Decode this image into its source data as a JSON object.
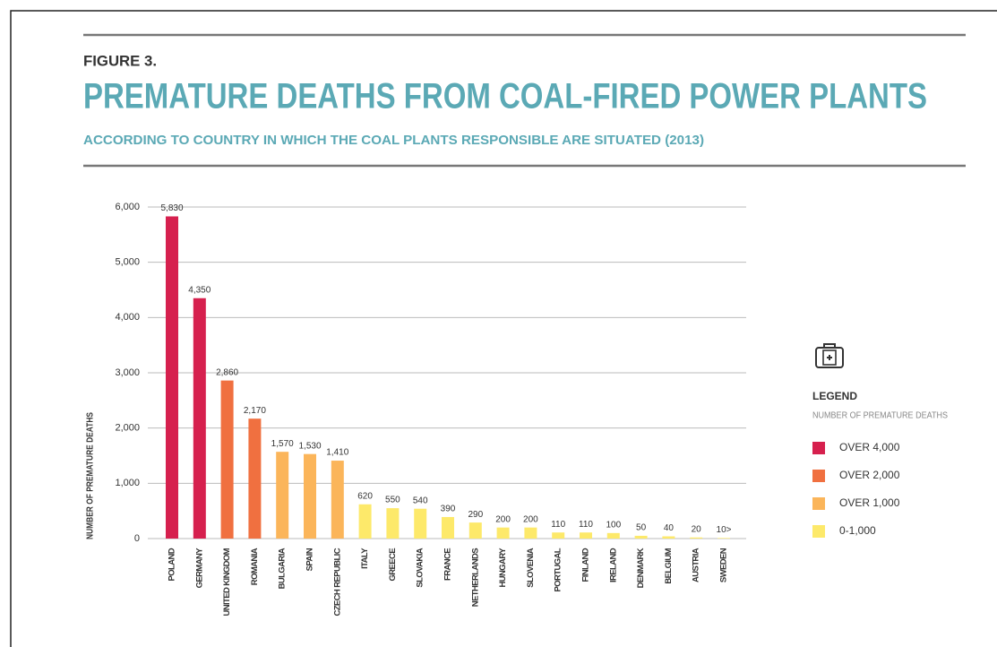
{
  "chart_data": {
    "type": "bar",
    "figure_label": "FIGURE 3.",
    "title": "PREMATURE DEATHS FROM COAL-FIRED POWER PLANTS",
    "subtitle": "ACCORDING TO COUNTRY IN WHICH THE COAL PLANTS RESPONSIBLE ARE SITUATED (2013)",
    "y_label": "NUMBER OF PREMATURE DEATHS",
    "categories": [
      "POLAND",
      "GERMANY",
      "UNITED KINGDOM",
      "ROMANIA",
      "BULGARIA",
      "SPAIN",
      "CZECH REPUBLIC",
      "ITALY",
      "GREECE",
      "SLOVAKIA",
      "FRANCE",
      "NETHERLANDS",
      "HUNGARY",
      "SLOVENIA",
      "PORTUGAL",
      "FINLAND",
      "IRELAND",
      "DENMARK",
      "BELGIUM",
      "AUSTRIA",
      "SWEDEN"
    ],
    "values": [
      5830,
      4350,
      2860,
      2170,
      1570,
      1530,
      1410,
      620,
      550,
      540,
      390,
      290,
      200,
      200,
      110,
      110,
      100,
      50,
      40,
      20,
      10
    ],
    "value_labels": [
      "5,830",
      "4,350",
      "2,860",
      "2,170",
      "1,570",
      "1,530",
      "1,410",
      "620",
      "550",
      "540",
      "390",
      "290",
      "200",
      "200",
      "110",
      "110",
      "100",
      "50",
      "40",
      "20",
      "10>"
    ],
    "colors": [
      "#d6204e",
      "#d6204e",
      "#f07040",
      "#f07040",
      "#fbb55a",
      "#fbb55a",
      "#fbb55a",
      "#fde96a",
      "#fde96a",
      "#fde96a",
      "#fde96a",
      "#fde96a",
      "#fde96a",
      "#fde96a",
      "#fde96a",
      "#fde96a",
      "#fde96a",
      "#fde96a",
      "#fde96a",
      "#fde96a",
      "#fde96a"
    ],
    "ylim": [
      0,
      6000
    ],
    "yticks": [
      0,
      {
        "value": 1000,
        "label": "1,000"
      },
      {
        "value": 2000,
        "label": "2,000"
      },
      {
        "value": 3000,
        "label": "3,000"
      },
      {
        "value": 4000,
        "label": "4,000"
      },
      {
        "value": 5000,
        "label": "5,000"
      },
      {
        "value": 6000,
        "label": "6,000"
      }
    ],
    "grid": true,
    "legend": {
      "title": "LEGEND",
      "subtitle": "NUMBER OF PREMATURE DEATHS",
      "items": [
        {
          "label": "OVER 4,000",
          "color": "#d6204e"
        },
        {
          "label": "OVER 2,000",
          "color": "#f07040"
        },
        {
          "label": "OVER 1,000",
          "color": "#fbb55a"
        },
        {
          "label": "0-1,000",
          "color": "#fde96a"
        }
      ]
    }
  }
}
